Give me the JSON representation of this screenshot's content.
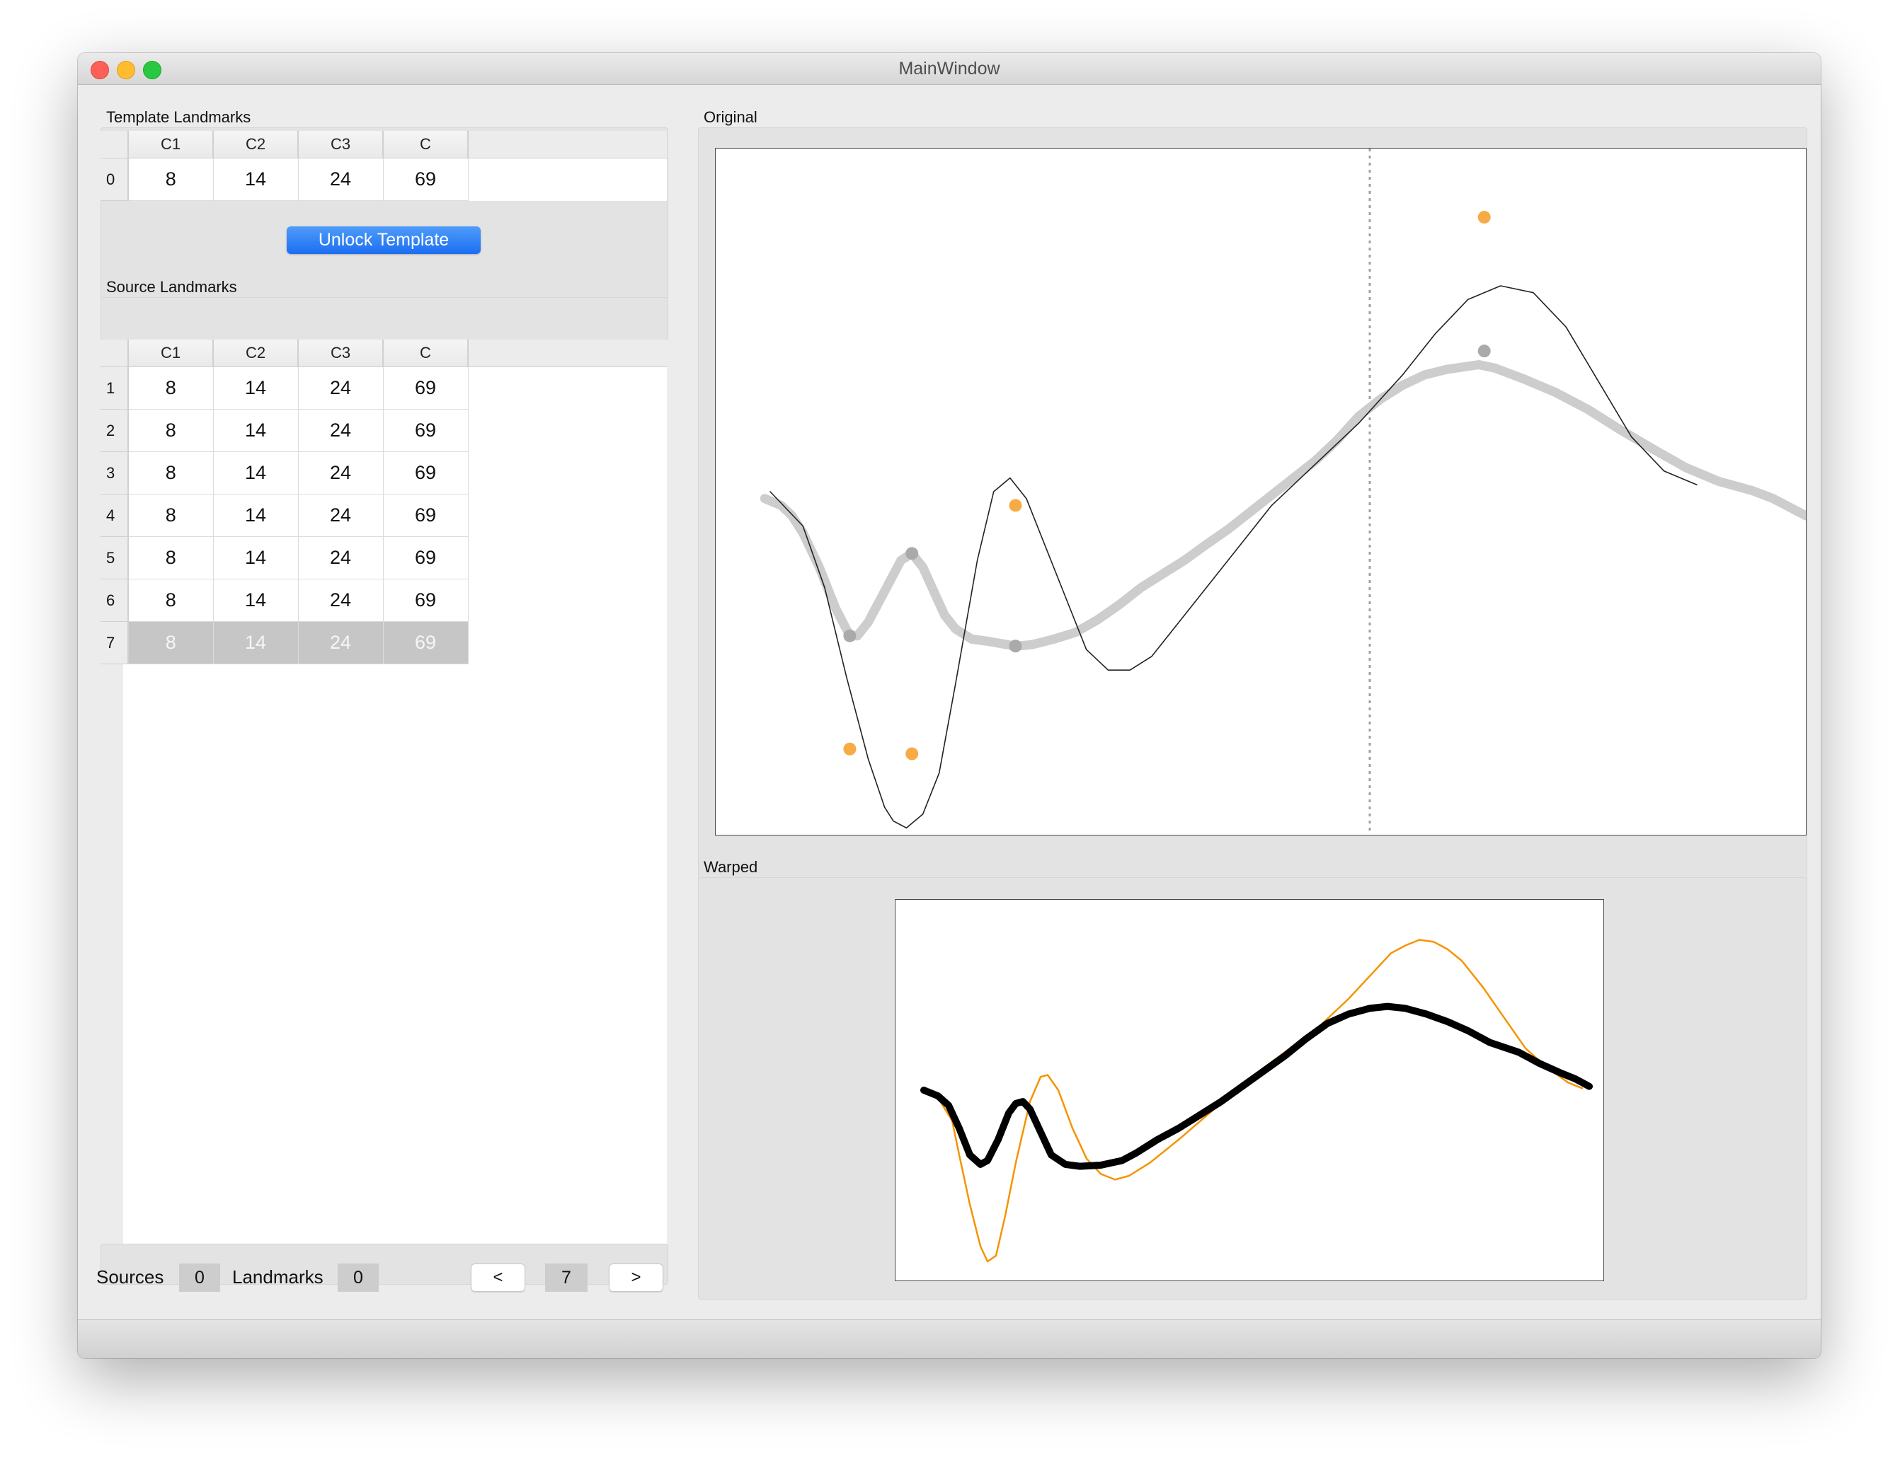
{
  "window": {
    "title": "MainWindow"
  },
  "template_landmarks": {
    "label": "Template Landmarks",
    "columns": [
      "C1",
      "C2",
      "C3",
      "C"
    ],
    "rows": [
      {
        "index": "0",
        "values": [
          "8",
          "14",
          "24",
          "69"
        ]
      }
    ],
    "unlock_button_label": "Unlock Template"
  },
  "source_landmarks": {
    "label": "Source Landmarks",
    "columns": [
      "C1",
      "C2",
      "C3",
      "C"
    ],
    "rows": [
      {
        "index": "1",
        "values": [
          "8",
          "14",
          "24",
          "69"
        ]
      },
      {
        "index": "2",
        "values": [
          "8",
          "14",
          "24",
          "69"
        ]
      },
      {
        "index": "3",
        "values": [
          "8",
          "14",
          "24",
          "69"
        ]
      },
      {
        "index": "4",
        "values": [
          "8",
          "14",
          "24",
          "69"
        ]
      },
      {
        "index": "5",
        "values": [
          "8",
          "14",
          "24",
          "69"
        ]
      },
      {
        "index": "6",
        "values": [
          "8",
          "14",
          "24",
          "69"
        ]
      },
      {
        "index": "7",
        "values": [
          "8",
          "14",
          "24",
          "69"
        ],
        "selected": true
      }
    ]
  },
  "footer": {
    "sources_label": "Sources",
    "sources_value": "0",
    "landmarks_label": "Landmarks",
    "landmarks_value": "0",
    "prev_label": "<",
    "current_index": "7",
    "next_label": ">"
  },
  "plots": {
    "original_label": "Original",
    "warped_label": "Warped"
  },
  "colors": {
    "landmark_marker": "#f7ab45",
    "template_marker": "#aaaaaa",
    "template_curve": "#cdcdcd",
    "source_curve": "#222222",
    "warped_source_curve": "#f59400",
    "warped_template_curve": "#000000",
    "selection_bg": "#c6c6c6",
    "unlock_button": "#1c6ef2"
  },
  "chart_data": [
    {
      "type": "line",
      "title": "Original",
      "xlim": [
        0,
        100
      ],
      "ylim": [
        0,
        100
      ],
      "vline_x": 60,
      "series": [
        {
          "role": "source",
          "points": [
            [
              5,
              50
            ],
            [
              8,
              45
            ],
            [
              10,
              36
            ],
            [
              12,
              23
            ],
            [
              14,
              11
            ],
            [
              15.5,
              4
            ],
            [
              16.3,
              2
            ],
            [
              17.5,
              1
            ],
            [
              19,
              3
            ],
            [
              20.5,
              9
            ],
            [
              22,
              22
            ],
            [
              24,
              40
            ],
            [
              25.5,
              50
            ],
            [
              27,
              52
            ],
            [
              28.5,
              49
            ],
            [
              30,
              43
            ],
            [
              32,
              35
            ],
            [
              34,
              27
            ],
            [
              36,
              24
            ],
            [
              38,
              24
            ],
            [
              40,
              26
            ],
            [
              43,
              32
            ],
            [
              47,
              40
            ],
            [
              51,
              48
            ],
            [
              55,
              54
            ],
            [
              59,
              60
            ],
            [
              63,
              67
            ],
            [
              66,
              73
            ],
            [
              69,
              78
            ],
            [
              72,
              80
            ],
            [
              75,
              79
            ],
            [
              78,
              74
            ],
            [
              81,
              66
            ],
            [
              84,
              58
            ],
            [
              87,
              53
            ],
            [
              90,
              51
            ]
          ],
          "landmarks": [
            [
              12.3,
              12.5
            ],
            [
              18,
              11.8
            ],
            [
              27.5,
              48
            ],
            [
              70.5,
              90
            ]
          ]
        },
        {
          "role": "template",
          "points": [
            [
              4.5,
              49
            ],
            [
              6,
              48
            ],
            [
              7,
              46.5
            ],
            [
              8,
              44
            ],
            [
              9.5,
              39
            ],
            [
              11,
              33
            ],
            [
              12.3,
              29
            ],
            [
              13,
              29
            ],
            [
              14,
              31
            ],
            [
              15,
              34
            ],
            [
              16,
              37
            ],
            [
              17,
              40
            ],
            [
              18,
              41
            ],
            [
              19,
              39
            ],
            [
              20,
              35.5
            ],
            [
              21,
              32
            ],
            [
              22,
              30
            ],
            [
              23.5,
              28.5
            ],
            [
              25,
              28.2
            ],
            [
              27.5,
              27.5
            ],
            [
              29,
              27.7
            ],
            [
              31,
              28.5
            ],
            [
              33,
              29.5
            ],
            [
              35,
              31.3
            ],
            [
              37,
              33.5
            ],
            [
              39,
              36
            ],
            [
              41,
              38
            ],
            [
              43,
              40
            ],
            [
              45,
              42.3
            ],
            [
              47,
              44.5
            ],
            [
              49,
              47
            ],
            [
              51,
              49.5
            ],
            [
              53,
              52
            ],
            [
              55,
              54.5
            ],
            [
              57,
              57.5
            ],
            [
              59,
              61
            ],
            [
              61,
              63.5
            ],
            [
              63,
              65.5
            ],
            [
              65,
              67
            ],
            [
              67,
              67.8
            ],
            [
              70,
              68.5
            ],
            [
              71.5,
              68
            ],
            [
              74,
              66.5
            ],
            [
              77,
              64.5
            ],
            [
              80,
              62
            ],
            [
              83,
              59
            ],
            [
              86,
              56.2
            ],
            [
              89,
              53.5
            ],
            [
              92,
              51.5
            ],
            [
              95,
              50.2
            ],
            [
              97,
              49
            ],
            [
              100,
              46.5
            ]
          ],
          "landmarks": [
            [
              12.3,
              29
            ],
            [
              18,
              41
            ],
            [
              27.5,
              27.5
            ],
            [
              70.5,
              70.5
            ]
          ]
        }
      ]
    },
    {
      "type": "line",
      "title": "Warped",
      "xlim": [
        0,
        100
      ],
      "ylim": [
        0,
        100
      ],
      "series": [
        {
          "role": "warped_source",
          "points": [
            [
              4,
              50
            ],
            [
              6,
              48
            ],
            [
              8,
              42
            ],
            [
              9,
              33
            ],
            [
              10.5,
              20
            ],
            [
              12,
              9
            ],
            [
              13,
              5
            ],
            [
              14.2,
              6.5
            ],
            [
              15.5,
              17
            ],
            [
              17,
              31
            ],
            [
              19,
              47
            ],
            [
              20.5,
              53.5
            ],
            [
              21.5,
              54
            ],
            [
              23,
              50
            ],
            [
              25,
              40
            ],
            [
              27,
              32
            ],
            [
              29,
              28
            ],
            [
              31,
              26.5
            ],
            [
              33,
              27.5
            ],
            [
              36,
              31
            ],
            [
              40,
              37
            ],
            [
              45,
              45
            ],
            [
              50,
              53
            ],
            [
              55,
              60
            ],
            [
              60,
              67
            ],
            [
              64,
              74
            ],
            [
              68,
              82
            ],
            [
              70,
              86
            ],
            [
              72,
              88
            ],
            [
              74,
              89.5
            ],
            [
              76,
              89
            ],
            [
              78,
              87
            ],
            [
              80,
              84
            ],
            [
              83,
              77
            ],
            [
              86,
              69
            ],
            [
              89,
              61
            ],
            [
              92,
              56
            ],
            [
              95,
              52
            ],
            [
              97,
              50.5
            ]
          ],
          "landmarks": []
        },
        {
          "role": "warped_template",
          "points": [
            [
              4,
              50
            ],
            [
              6,
              48.5
            ],
            [
              7.5,
              46
            ],
            [
              9,
              40
            ],
            [
              10.5,
              33
            ],
            [
              12,
              30.5
            ],
            [
              13,
              31.5
            ],
            [
              14.5,
              37
            ],
            [
              16,
              44
            ],
            [
              17,
              46.5
            ],
            [
              18,
              47
            ],
            [
              19,
              45
            ],
            [
              20.5,
              39
            ],
            [
              22,
              33
            ],
            [
              24,
              30.5
            ],
            [
              26,
              30
            ],
            [
              29,
              30.3
            ],
            [
              32,
              31.5
            ],
            [
              34,
              33.5
            ],
            [
              37,
              37
            ],
            [
              40,
              40
            ],
            [
              43,
              43.5
            ],
            [
              46,
              47
            ],
            [
              49,
              51
            ],
            [
              52,
              55
            ],
            [
              55,
              59
            ],
            [
              58,
              63.5
            ],
            [
              61,
              67.5
            ],
            [
              64,
              70
            ],
            [
              67,
              71.5
            ],
            [
              69.5,
              72
            ],
            [
              72,
              71.5
            ],
            [
              75,
              70
            ],
            [
              78,
              68
            ],
            [
              81,
              65.5
            ],
            [
              84,
              62.5
            ],
            [
              88,
              60
            ],
            [
              91,
              57
            ],
            [
              94,
              54.5
            ],
            [
              96,
              53
            ],
            [
              98,
              51
            ]
          ],
          "landmarks": []
        }
      ]
    }
  ]
}
